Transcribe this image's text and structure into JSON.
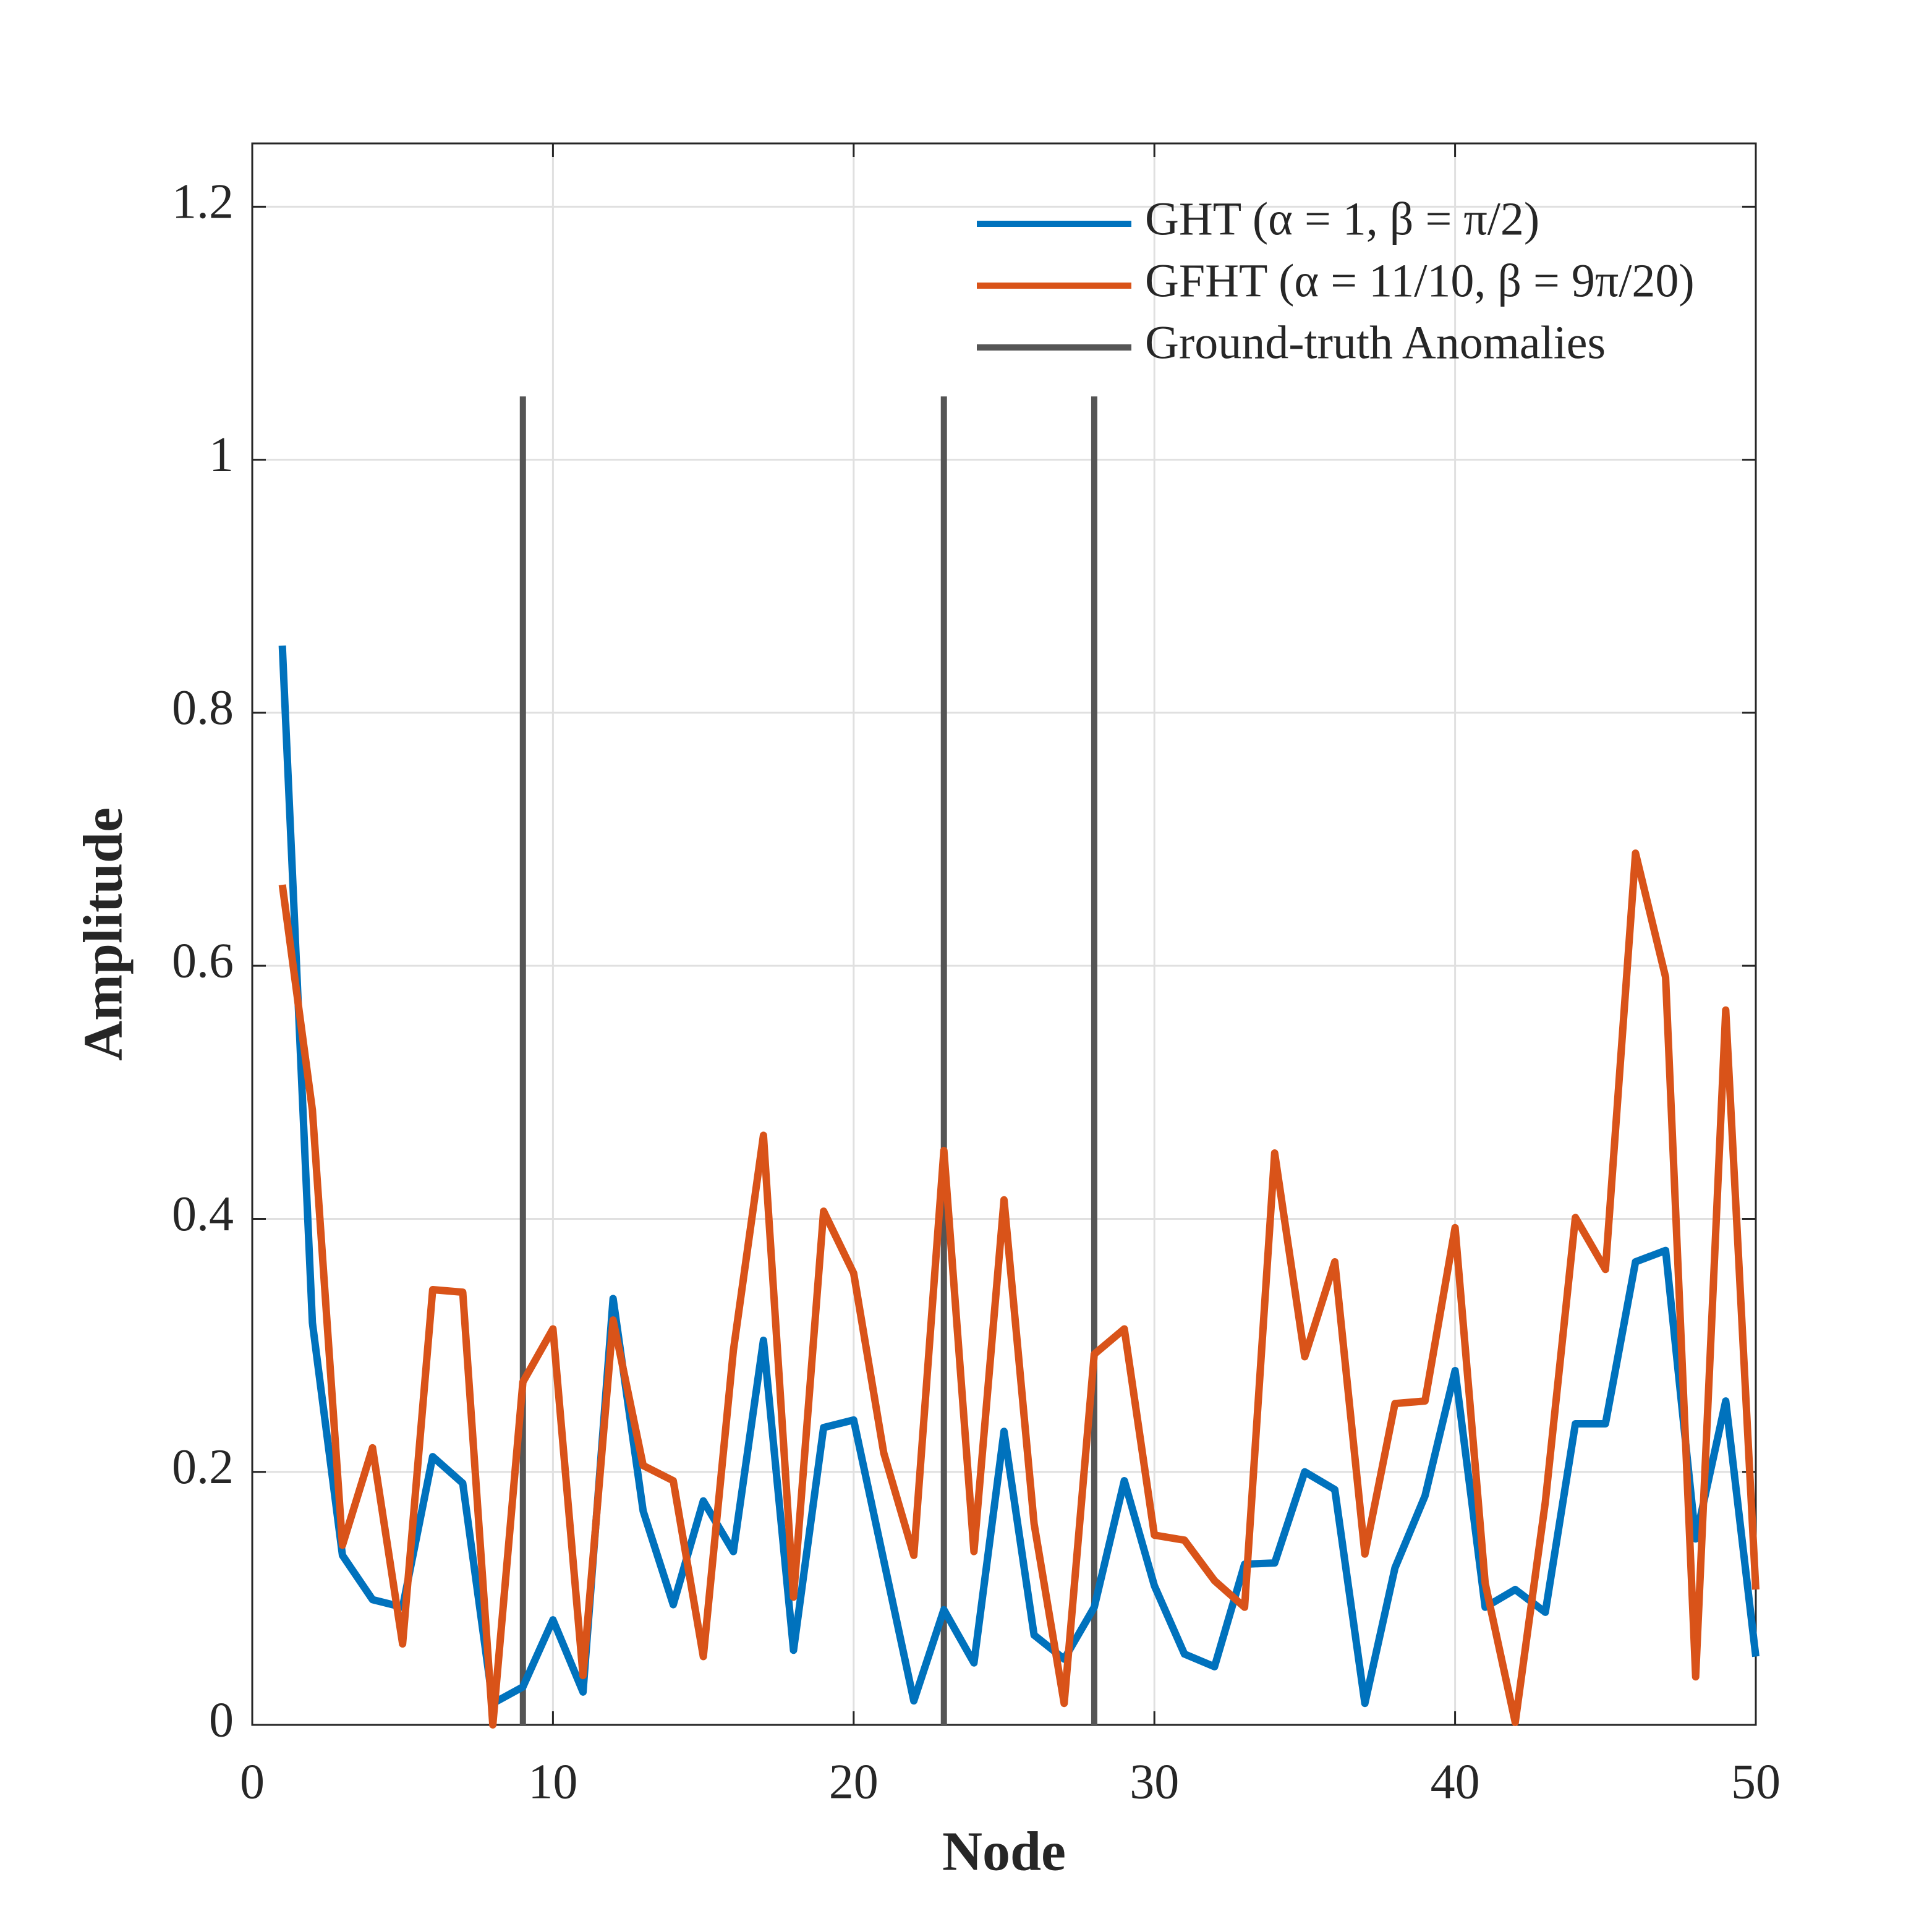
{
  "chart_data": {
    "type": "line",
    "xlabel": "Node",
    "ylabel": "Amplitude",
    "x": [
      1,
      2,
      3,
      4,
      5,
      6,
      7,
      8,
      9,
      10,
      11,
      12,
      13,
      14,
      15,
      16,
      17,
      18,
      19,
      20,
      21,
      22,
      23,
      24,
      25,
      26,
      27,
      28,
      29,
      30,
      31,
      32,
      33,
      34,
      35,
      36,
      37,
      38,
      39,
      40,
      41,
      42,
      43,
      44,
      45,
      46,
      47,
      48,
      49,
      50
    ],
    "series": [
      {
        "name": "GHT (α = 1, β = π/2)",
        "color": "#0072BD",
        "values": [
          0.853,
          0.318,
          0.134,
          0.099,
          0.093,
          0.212,
          0.191,
          0.017,
          0.03,
          0.083,
          0.026,
          0.337,
          0.169,
          0.095,
          0.177,
          0.137,
          0.304,
          0.059,
          0.235,
          0.241,
          0.13,
          0.019,
          0.091,
          0.049,
          0.232,
          0.071,
          0.052,
          0.093,
          0.193,
          0.11,
          0.056,
          0.046,
          0.127,
          0.128,
          0.2,
          0.186,
          0.017,
          0.124,
          0.181,
          0.28,
          0.093,
          0.107,
          0.089,
          0.238,
          0.238,
          0.366,
          0.375,
          0.147,
          0.256,
          0.054
        ]
      },
      {
        "name": "GFHT (α = 11/10, β = 9π/20)",
        "color": "#D95319",
        "values": [
          0.664,
          0.486,
          0.142,
          0.219,
          0.064,
          0.344,
          0.342,
          0.0,
          0.271,
          0.313,
          0.039,
          0.32,
          0.205,
          0.193,
          0.054,
          0.296,
          0.466,
          0.101,
          0.406,
          0.357,
          0.215,
          0.134,
          0.454,
          0.137,
          0.415,
          0.159,
          0.017,
          0.293,
          0.313,
          0.15,
          0.146,
          0.114,
          0.093,
          0.452,
          0.291,
          0.366,
          0.135,
          0.254,
          0.256,
          0.393,
          0.112,
          0.002,
          0.176,
          0.401,
          0.36,
          0.689,
          0.591,
          0.038,
          0.565,
          0.107
        ]
      },
      {
        "name": "Ground-truth Anomalies",
        "color": "#555555",
        "stem": true,
        "x": [
          9,
          23,
          28
        ],
        "values": [
          1.05,
          1.05,
          1.05
        ]
      }
    ],
    "xlim": [
      0,
      50
    ],
    "xticks": [
      0,
      10,
      20,
      30,
      40,
      50
    ],
    "ylim": [
      0,
      1.25
    ],
    "yticks": [
      0,
      0.2,
      0.4,
      0.6,
      0.8,
      1,
      1.2
    ],
    "grid": true,
    "legend": "northeast"
  }
}
